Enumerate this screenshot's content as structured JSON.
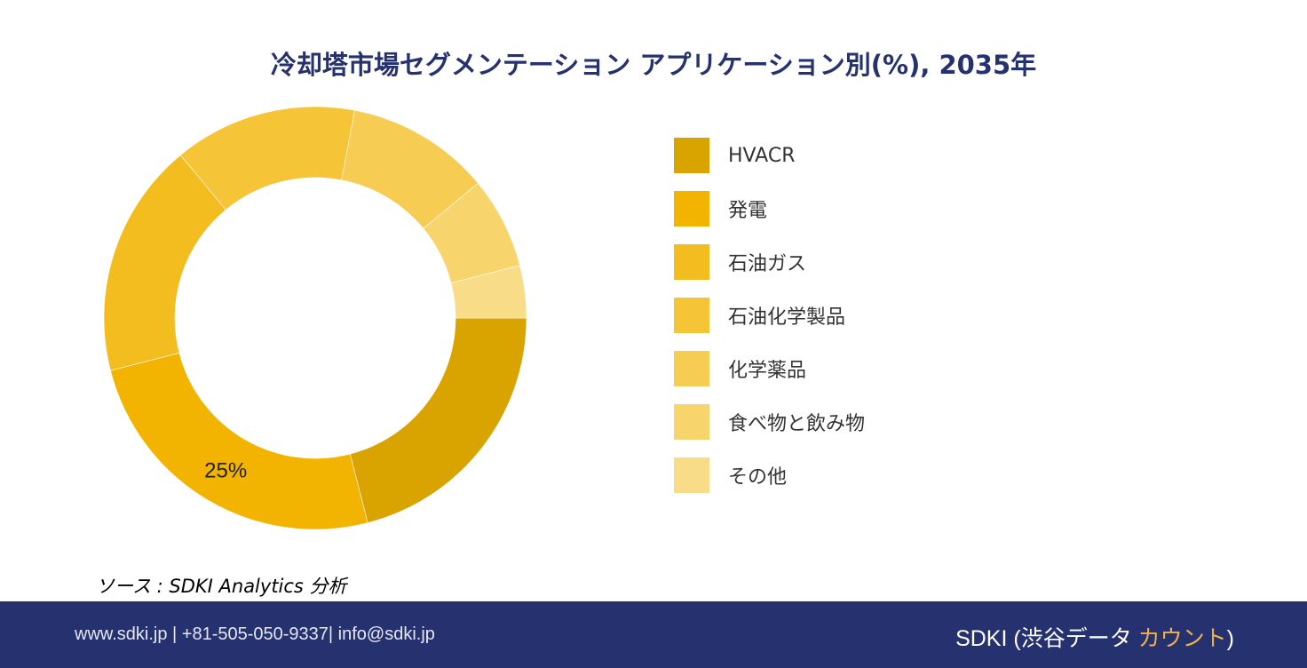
{
  "chart_data": {
    "type": "pie",
    "variant": "donut",
    "title": "冷却塔市場セグメンテーション アプリケーション別(%), 2035年",
    "categories": [
      "HVACR",
      "発電",
      "石油ガス",
      "石油化学製品",
      "化学薬品",
      "食べ物と飲み物",
      "その他"
    ],
    "values": [
      21,
      25,
      18,
      14,
      11,
      7,
      4
    ],
    "colors": [
      "#D9A300",
      "#F2B400",
      "#F3BC1F",
      "#F5C437",
      "#F6CC52",
      "#F8D46D",
      "#F9DC88"
    ],
    "data_labels": [
      {
        "category": "発電",
        "text": "25%"
      }
    ],
    "legend_position": "right"
  },
  "source": "ソース : SDKI Analytics 分析",
  "footer": {
    "contact": "www.sdki.jp | +81-505-050-9337| info@sdki.jp",
    "brand_main": "SDKI (渋谷データ ",
    "brand_accent": "カウント",
    "brand_end": ")"
  }
}
